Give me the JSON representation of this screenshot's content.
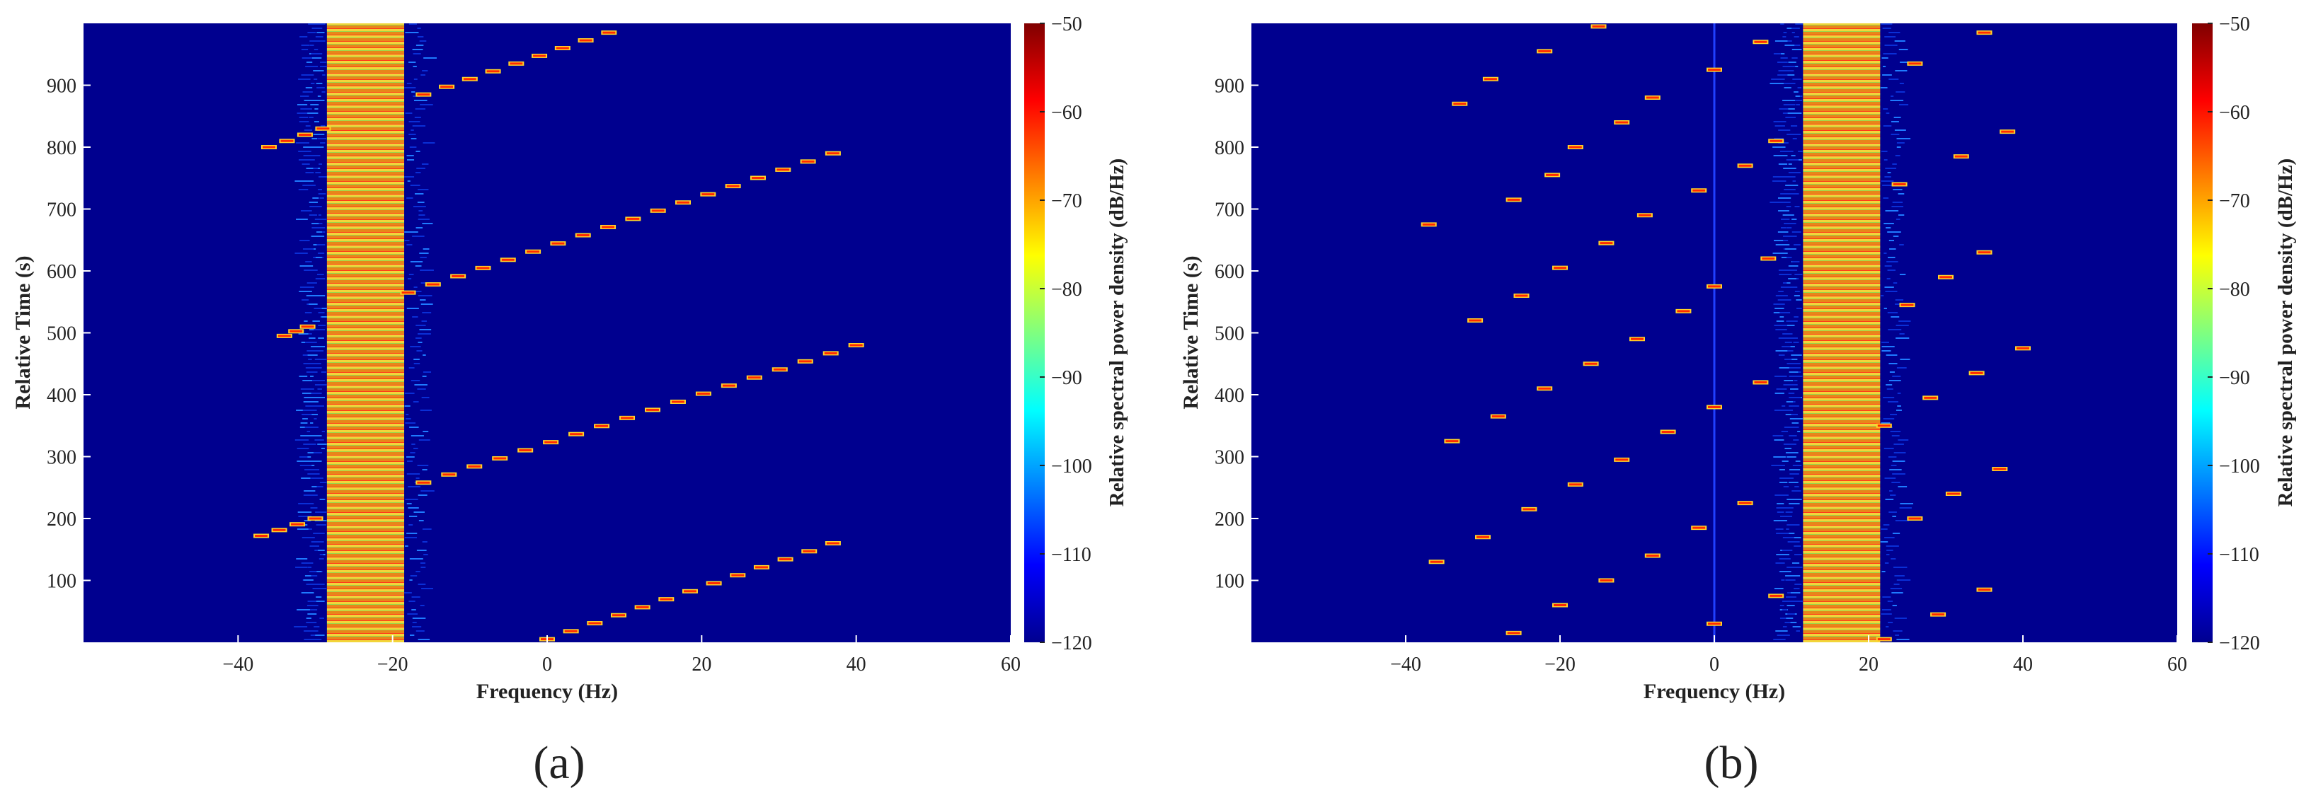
{
  "colors": {
    "background": "#00008f",
    "band_high": "#e98a18",
    "band_mid": "#f2e23a",
    "tone": "#ff2a00",
    "axis": "#222222"
  },
  "colorbar": {
    "label": "Relative spectral power density (dB/Hz)",
    "ticks": [
      "−50",
      "−60",
      "−70",
      "−80",
      "−90",
      "−100",
      "−110",
      "−120"
    ],
    "min": -120,
    "max": -50,
    "colormap": "jet"
  },
  "chart_data": [
    {
      "type": "heatmap",
      "panel_label": "(a)",
      "xlabel": "Frequency (Hz)",
      "ylabel": "Relative Time (s)",
      "xlim": [
        -60,
        60
      ],
      "ylim": [
        0,
        1000
      ],
      "xticks": [
        "−40",
        "−20",
        "0",
        "20",
        "40",
        "60"
      ],
      "xtick_values": [
        -40,
        -20,
        0,
        20,
        40,
        60
      ],
      "yticks": [
        "100",
        "200",
        "300",
        "400",
        "500",
        "600",
        "700",
        "800",
        "900"
      ],
      "ytick_values": [
        100,
        200,
        300,
        400,
        500,
        600,
        700,
        800,
        900
      ],
      "band": {
        "x_from": -28.5,
        "x_to": -18.5
      },
      "sweeps": [
        {
          "t_start": 5,
          "t_end": 160,
          "f_start": 0,
          "f_end": 37,
          "steps": 12
        },
        {
          "t_start": 172,
          "t_end": 200,
          "f_start": -37,
          "f_end": -30,
          "steps": 3
        },
        {
          "t_start": 258,
          "t_end": 480,
          "f_start": -16,
          "f_end": 40,
          "steps": 17
        },
        {
          "t_start": 495,
          "t_end": 510,
          "f_start": -34,
          "f_end": -31,
          "steps": 2
        },
        {
          "t_start": 565,
          "t_end": 790,
          "f_start": -18,
          "f_end": 37,
          "steps": 17
        },
        {
          "t_start": 800,
          "t_end": 830,
          "f_start": -36,
          "f_end": -29,
          "steps": 3
        },
        {
          "t_start": 885,
          "t_end": 985,
          "f_start": -16,
          "f_end": 8,
          "steps": 8
        }
      ]
    },
    {
      "type": "heatmap",
      "panel_label": "(b)",
      "xlabel": "Frequency (Hz)",
      "ylabel": "Relative Time (s)",
      "xlim": [
        -60,
        60
      ],
      "ylim": [
        0,
        1000
      ],
      "xticks": [
        "−40",
        "−20",
        "0",
        "20",
        "40",
        "60"
      ],
      "xtick_values": [
        -40,
        -20,
        0,
        20,
        40,
        60
      ],
      "yticks": [
        "100",
        "200",
        "300",
        "400",
        "500",
        "600",
        "700",
        "800",
        "900"
      ],
      "ytick_values": [
        100,
        200,
        300,
        400,
        500,
        600,
        700,
        800,
        900
      ],
      "band": {
        "x_from": 11.5,
        "x_to": 21.5
      },
      "tones": [
        [
          -29,
          910
        ],
        [
          -22,
          955
        ],
        [
          -15,
          995
        ],
        [
          -33,
          870
        ],
        [
          -8,
          880
        ],
        [
          0,
          925
        ],
        [
          6,
          970
        ],
        [
          26,
          935
        ],
        [
          35,
          985
        ],
        [
          -18,
          800
        ],
        [
          -12,
          840
        ],
        [
          -26,
          715
        ],
        [
          -21,
          755
        ],
        [
          -37,
          675
        ],
        [
          -2,
          730
        ],
        [
          4,
          770
        ],
        [
          8,
          810
        ],
        [
          24,
          740
        ],
        [
          32,
          785
        ],
        [
          38,
          825
        ],
        [
          -20,
          605
        ],
        [
          -14,
          645
        ],
        [
          -9,
          690
        ],
        [
          -25,
          560
        ],
        [
          0,
          575
        ],
        [
          7,
          620
        ],
        [
          25,
          545
        ],
        [
          30,
          590
        ],
        [
          35,
          630
        ],
        [
          -31,
          520
        ],
        [
          -10,
          490
        ],
        [
          -4,
          535
        ],
        [
          -16,
          450
        ],
        [
          40,
          475
        ],
        [
          -22,
          410
        ],
        [
          -28,
          365
        ],
        [
          -6,
          340
        ],
        [
          0,
          380
        ],
        [
          6,
          420
        ],
        [
          28,
          395
        ],
        [
          34,
          435
        ],
        [
          -34,
          325
        ],
        [
          -12,
          295
        ],
        [
          -18,
          255
        ],
        [
          4,
          225
        ],
        [
          -2,
          185
        ],
        [
          22,
          350
        ],
        [
          37,
          280
        ],
        [
          31,
          240
        ],
        [
          -24,
          215
        ],
        [
          -30,
          170
        ],
        [
          -8,
          140
        ],
        [
          -36,
          130
        ],
        [
          -14,
          100
        ],
        [
          8,
          75
        ],
        [
          -20,
          60
        ],
        [
          0,
          30
        ],
        [
          -26,
          15
        ],
        [
          26,
          200
        ],
        [
          35,
          85
        ],
        [
          29,
          45
        ],
        [
          22,
          5
        ]
      ]
    }
  ]
}
